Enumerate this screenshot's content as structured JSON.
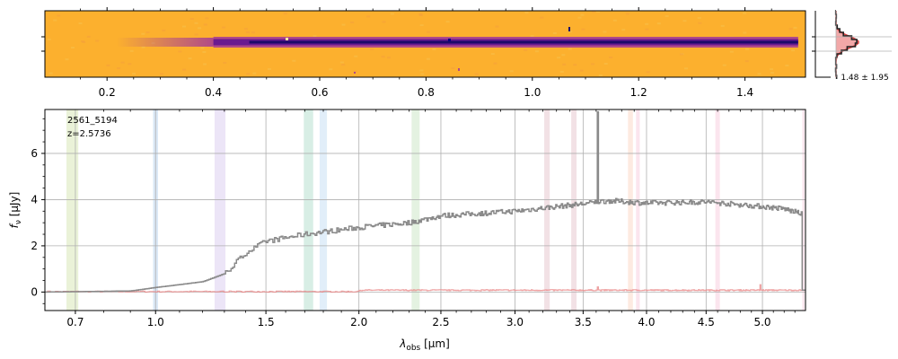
{
  "colors": {
    "background": "#ffffff",
    "spectrum": "#8a8a8a",
    "error": "#e88a8a",
    "axis": "#000000",
    "grid": "#b0b0b0",
    "image_background": "#fcb02e",
    "trace_core": "#1c0a6a",
    "trace_mid": "#6a1a90",
    "trace_edge": "#b04a88",
    "profile_hist": "#222222",
    "profile_model": "#d84545",
    "profile_fill": "#f2a8a8"
  },
  "chart_data": [
    {
      "name": "2d-spectrum-image",
      "type": "heatmap",
      "colormap": "plasma (reversed)",
      "x_ticks": [
        "0.2",
        "0.4",
        "0.6",
        "0.8",
        "1.0",
        "1.2",
        "1.4"
      ],
      "x_tick_values": [
        0.2,
        0.4,
        0.6,
        0.8,
        1.0,
        1.2,
        1.4
      ],
      "trace_start": 0.4,
      "trace_end": 1.5,
      "grid": false
    },
    {
      "name": "spatial-profile",
      "type": "line",
      "annotation": "1.48 ± 1.95",
      "series": [
        {
          "role": "histogram",
          "color": "#222222"
        },
        {
          "role": "model",
          "color": "#d84545"
        }
      ]
    },
    {
      "name": "1d-spectrum",
      "type": "line",
      "id_label": "2561_5194",
      "z_label": "z=2.5736",
      "xlabel_text": "λ",
      "xlabel_sub": "obs",
      "xlabel_unit": " [μm]",
      "ylabel_text": "f",
      "ylabel_sub": "ν",
      "ylabel_unit": " [μJy]",
      "x_ticks": [
        "0.7",
        "1.0",
        "1.5",
        "2.0",
        "2.5",
        "3.0",
        "3.5",
        "4.0",
        "4.5",
        "5.0"
      ],
      "x_tick_values": [
        0.7,
        1.0,
        1.5,
        2.0,
        2.5,
        3.0,
        3.5,
        4.0,
        4.5,
        5.0
      ],
      "y_ticks": [
        "0",
        "2",
        "4",
        "6"
      ],
      "y_tick_values": [
        0,
        2,
        4,
        6
      ],
      "ylim": [
        -0.8,
        7.9
      ],
      "grid": true,
      "line_bands": [
        {
          "x": 0.69,
          "width": 0.04,
          "color": "#d8e8b8"
        },
        {
          "x": 1.0,
          "width": 0.02,
          "color": "#bcd6ee"
        },
        {
          "x": 1.28,
          "width": 0.05,
          "color": "#ddd0f0"
        },
        {
          "x": 1.72,
          "width": 0.05,
          "color": "#b8e0d0"
        },
        {
          "x": 1.8,
          "width": 0.04,
          "color": "#c8e0f4"
        },
        {
          "x": 2.34,
          "width": 0.05,
          "color": "#cde8c8"
        },
        {
          "x": 3.23,
          "width": 0.04,
          "color": "#e8c8d0"
        },
        {
          "x": 3.43,
          "width": 0.04,
          "color": "#e8c8d0"
        },
        {
          "x": 3.87,
          "width": 0.04,
          "color": "#fcd8c8"
        },
        {
          "x": 3.93,
          "width": 0.03,
          "color": "#f8d0e0"
        },
        {
          "x": 4.6,
          "width": 0.04,
          "color": "#f8d0e0"
        },
        {
          "x": 5.38,
          "width": 0.02,
          "color": "#f8d0e0"
        }
      ],
      "flux_anchors": [
        [
          0.6,
          0.0
        ],
        [
          0.9,
          0.05
        ],
        [
          1.0,
          0.2
        ],
        [
          1.2,
          0.45
        ],
        [
          1.3,
          0.8
        ],
        [
          1.4,
          1.7
        ],
        [
          1.5,
          2.2
        ],
        [
          1.7,
          2.5
        ],
        [
          2.0,
          2.8
        ],
        [
          2.3,
          3.0
        ],
        [
          2.5,
          3.3
        ],
        [
          3.0,
          3.5
        ],
        [
          3.3,
          3.7
        ],
        [
          3.55,
          3.85
        ],
        [
          3.6,
          3.9
        ],
        [
          3.7,
          3.95
        ],
        [
          4.0,
          3.85
        ],
        [
          4.5,
          3.9
        ],
        [
          5.0,
          3.7
        ],
        [
          5.2,
          3.6
        ],
        [
          5.35,
          3.4
        ]
      ],
      "flux_peak": {
        "x": 3.61,
        "y": 7.8
      },
      "flux_end": 5.36,
      "error_level": 0.02
    }
  ]
}
